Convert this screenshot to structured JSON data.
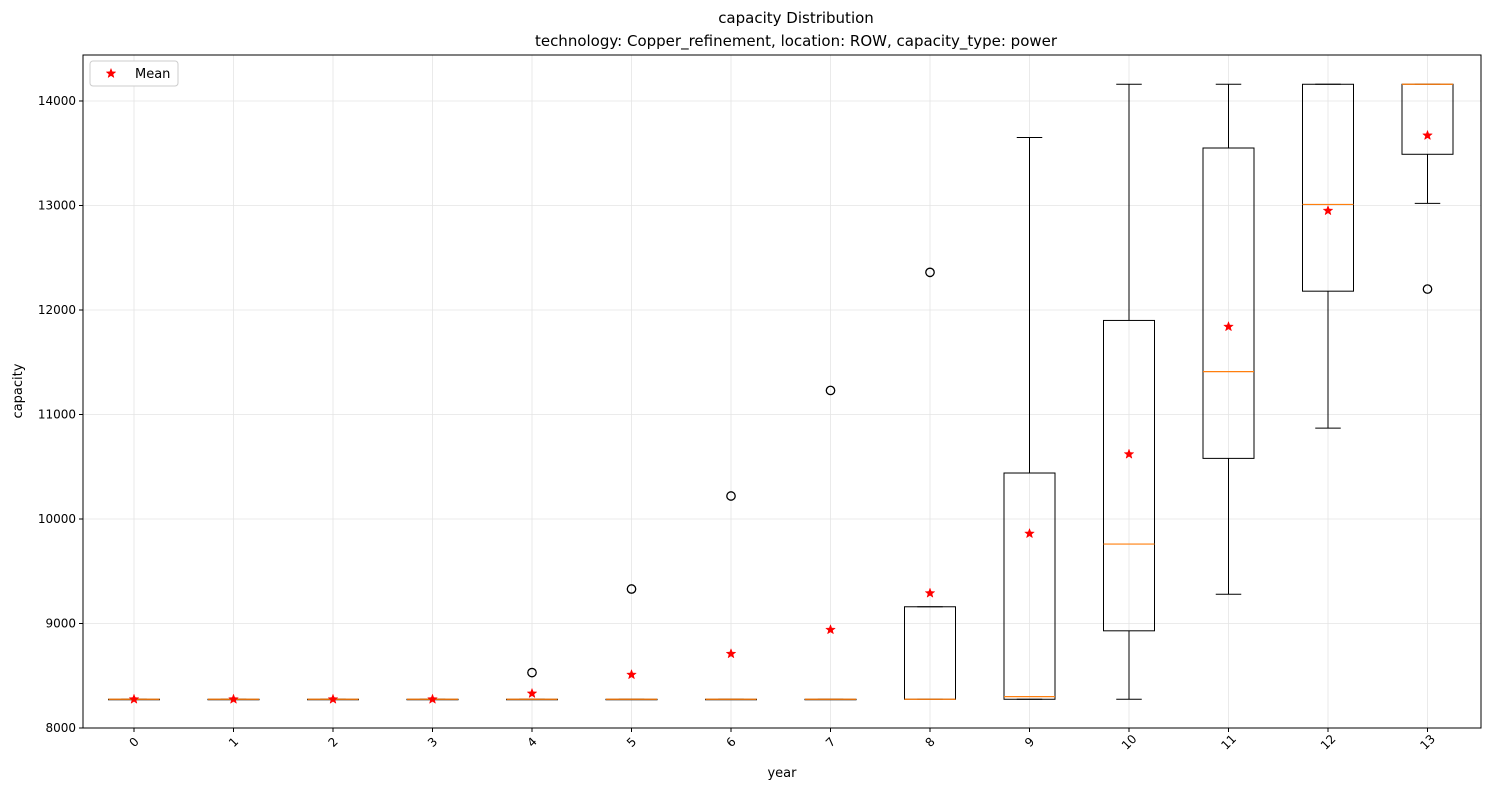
{
  "chart_data": {
    "type": "box",
    "title": "capacity Distribution",
    "subtitle": "technology: Copper_refinement, location: ROW, capacity_type: power",
    "xlabel": "year",
    "ylabel": "capacity",
    "ylim": [
      8000,
      14440
    ],
    "yticks": [
      8000,
      9000,
      10000,
      11000,
      12000,
      13000,
      14000
    ],
    "ytick_labels": [
      "8000",
      "9000",
      "10000",
      "11000",
      "12000",
      "13000",
      "14000"
    ],
    "grid": true,
    "legend": {
      "position": "top-left",
      "entries": [
        {
          "label": "Mean",
          "marker": "star",
          "color": "#ff0000"
        }
      ]
    },
    "colors": {
      "box": "#000000",
      "median": "#ff7f0e",
      "mean": "#ff0000",
      "grid": "#e5e5e5"
    },
    "categories": [
      "0",
      "1",
      "2",
      "3",
      "4",
      "5",
      "6",
      "7",
      "8",
      "9",
      "10",
      "11",
      "12",
      "13"
    ],
    "boxes": [
      {
        "year": "0",
        "whisker_low": 8275,
        "q1": 8275,
        "median": 8275,
        "q3": 8275,
        "whisker_high": 8275,
        "mean": 8275,
        "outliers": []
      },
      {
        "year": "1",
        "whisker_low": 8275,
        "q1": 8275,
        "median": 8275,
        "q3": 8275,
        "whisker_high": 8275,
        "mean": 8275,
        "outliers": []
      },
      {
        "year": "2",
        "whisker_low": 8275,
        "q1": 8275,
        "median": 8275,
        "q3": 8275,
        "whisker_high": 8275,
        "mean": 8275,
        "outliers": []
      },
      {
        "year": "3",
        "whisker_low": 8275,
        "q1": 8275,
        "median": 8275,
        "q3": 8275,
        "whisker_high": 8275,
        "mean": 8275,
        "outliers": []
      },
      {
        "year": "4",
        "whisker_low": 8275,
        "q1": 8275,
        "median": 8275,
        "q3": 8275,
        "whisker_high": 8275,
        "mean": 8330,
        "outliers": [
          8530
        ]
      },
      {
        "year": "5",
        "whisker_low": 8275,
        "q1": 8275,
        "median": 8275,
        "q3": 8275,
        "whisker_high": 8275,
        "mean": 8510,
        "outliers": [
          9330
        ]
      },
      {
        "year": "6",
        "whisker_low": 8275,
        "q1": 8275,
        "median": 8275,
        "q3": 8275,
        "whisker_high": 8275,
        "mean": 8710,
        "outliers": [
          10220
        ]
      },
      {
        "year": "7",
        "whisker_low": 8275,
        "q1": 8275,
        "median": 8275,
        "q3": 8275,
        "whisker_high": 8275,
        "mean": 8940,
        "outliers": [
          11230
        ]
      },
      {
        "year": "8",
        "whisker_low": 8275,
        "q1": 8275,
        "median": 8275,
        "q3": 9160,
        "whisker_high": 9160,
        "mean": 9290,
        "outliers": [
          12360
        ]
      },
      {
        "year": "9",
        "whisker_low": 8275,
        "q1": 8275,
        "median": 8300,
        "q3": 10440,
        "whisker_high": 13650,
        "mean": 9860,
        "outliers": []
      },
      {
        "year": "10",
        "whisker_low": 8275,
        "q1": 8930,
        "median": 9760,
        "q3": 11900,
        "whisker_high": 14160,
        "mean": 10620,
        "outliers": []
      },
      {
        "year": "11",
        "whisker_low": 9280,
        "q1": 10580,
        "median": 11410,
        "q3": 13550,
        "whisker_high": 14160,
        "mean": 11840,
        "outliers": []
      },
      {
        "year": "12",
        "whisker_low": 10870,
        "q1": 12180,
        "median": 13010,
        "q3": 14160,
        "whisker_high": 14160,
        "mean": 12950,
        "outliers": []
      },
      {
        "year": "13",
        "whisker_low": 13020,
        "q1": 13490,
        "median": 14160,
        "q3": 14160,
        "whisker_high": 14160,
        "mean": 13670,
        "outliers": [
          12200
        ]
      }
    ]
  }
}
